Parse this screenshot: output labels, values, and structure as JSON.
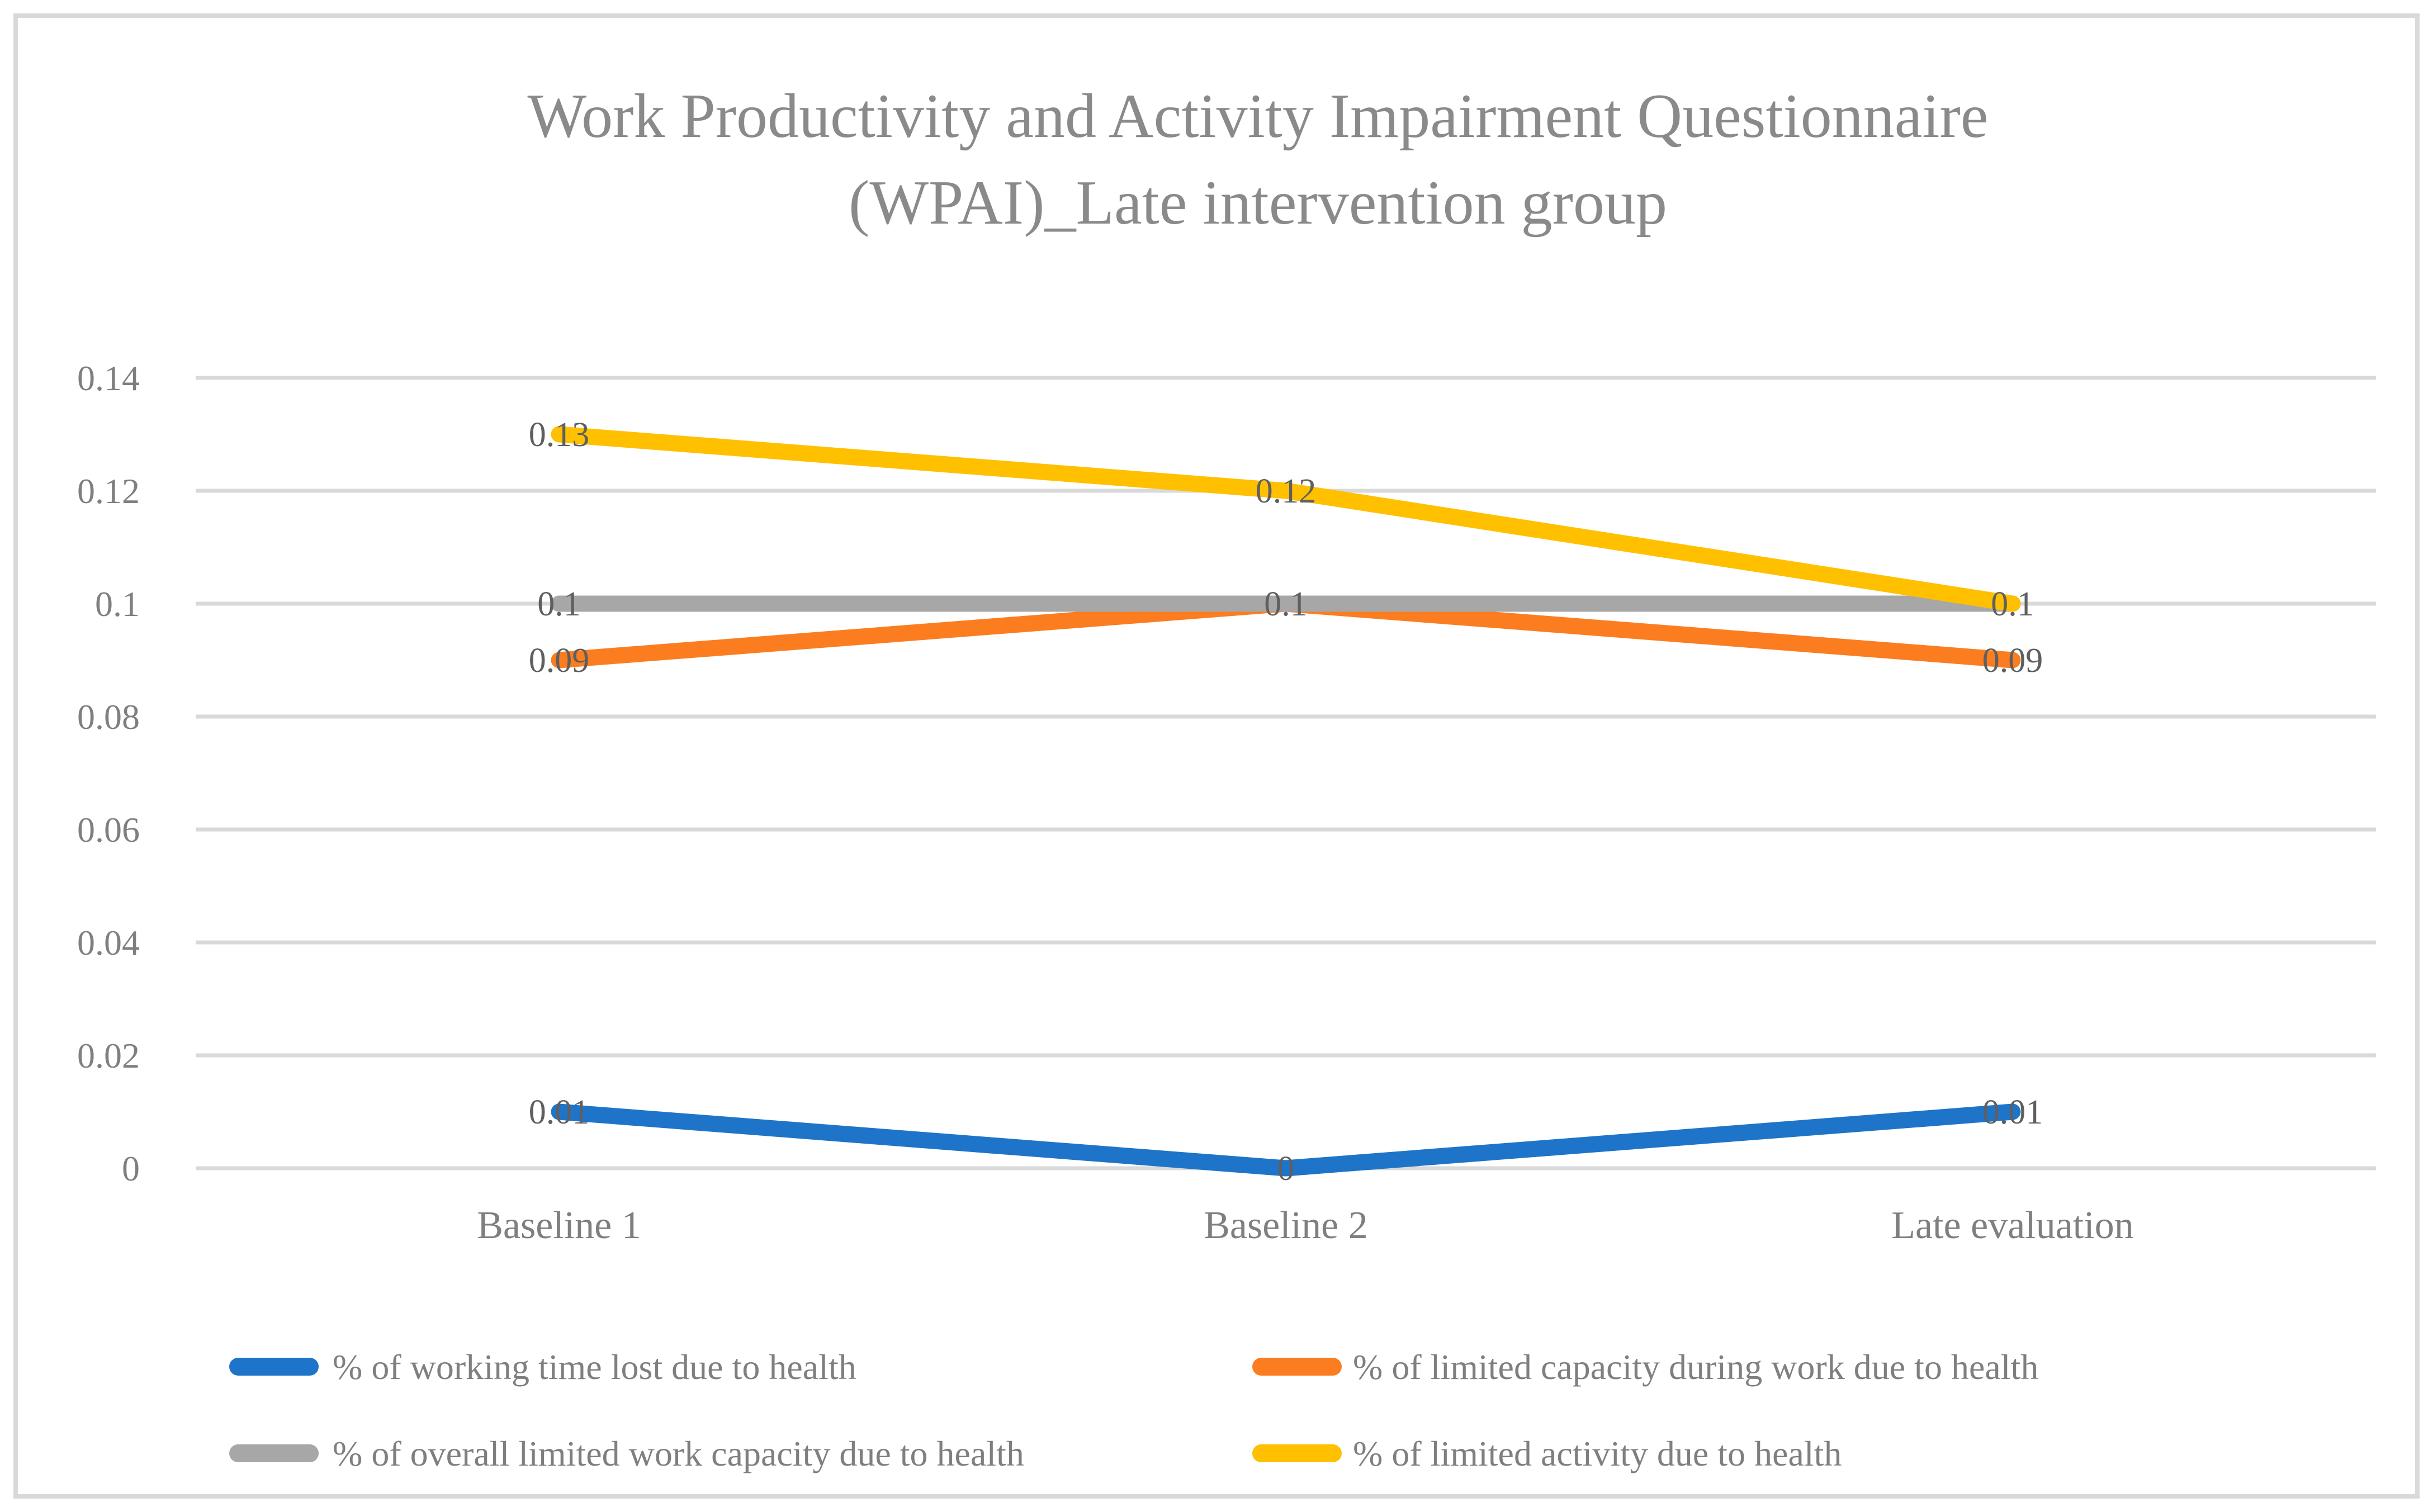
{
  "figure": {
    "background": "#ffffff",
    "border_color": "#d9d9d9",
    "gridline_color": "#d9d9d9"
  },
  "chart_data": {
    "type": "line",
    "title": "Work Productivity and Activity Impairment Questionnaire (WPAI)_Late intervention group",
    "title_lines": [
      "Work Productivity and Activity Impairment Questionnaire",
      "(WPAI)_Late intervention group"
    ],
    "categories": [
      "Baseline 1",
      "Baseline 2",
      "Late evaluation"
    ],
    "series": [
      {
        "name": "% of working time lost due to health",
        "color": "#1e74c8",
        "values": [
          0.01,
          0,
          0.01
        ],
        "labels": [
          "0.01",
          "0",
          "0.01"
        ]
      },
      {
        "name": "% of limited capacity during work due to health",
        "color": "#fb7d20",
        "values": [
          0.09,
          0.1,
          0.09
        ],
        "labels": [
          "0.09",
          "0.1",
          "0.09"
        ]
      },
      {
        "name": "% of overall limited work capacity due to health",
        "color": "#a7a7a7",
        "values": [
          0.1,
          0.1,
          0.1
        ],
        "labels": [
          "0.1",
          null,
          "0.1"
        ]
      },
      {
        "name": "% of limited activity due to health",
        "color": "#ffc000",
        "values": [
          0.13,
          0.12,
          0.1
        ],
        "labels": [
          "0.13",
          "0.12",
          null
        ]
      }
    ],
    "y_axis": {
      "min": 0,
      "max": 0.14,
      "step": 0.02,
      "tick_labels": [
        "0",
        "0.02",
        "0.04",
        "0.06",
        "0.08",
        "0.1",
        "0.12",
        "0.14"
      ]
    },
    "grid": true,
    "legend_position": "bottom"
  }
}
